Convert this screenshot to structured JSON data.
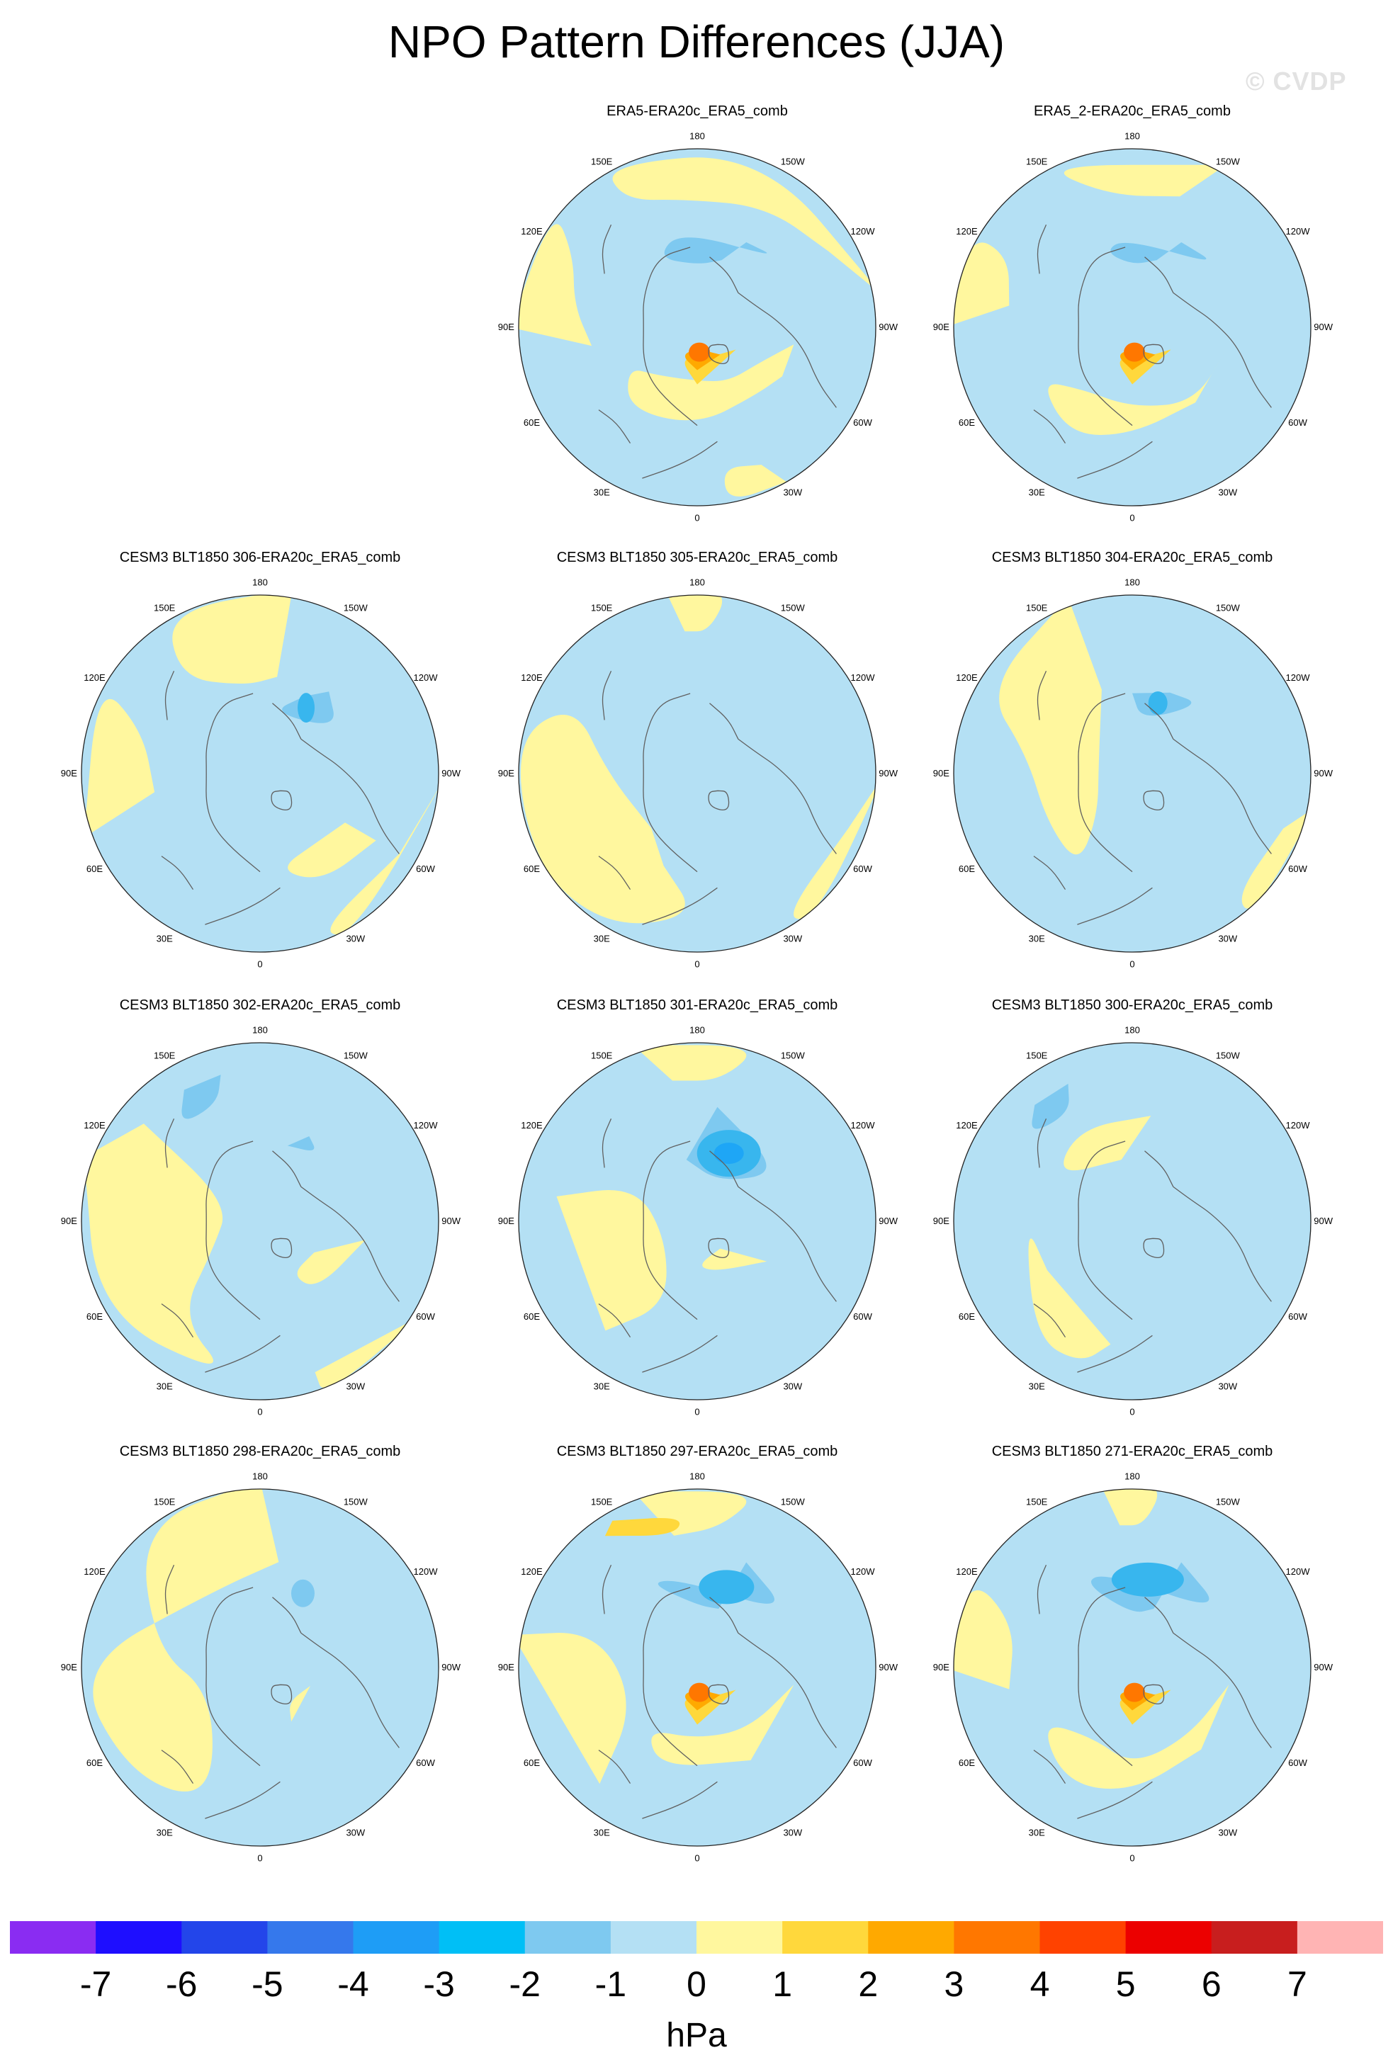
{
  "title": "NPO Pattern Differences (JJA)",
  "watermark": "© CVDP",
  "colors": {
    "neg": "#b4e0f4",
    "pos": "#fff79e",
    "pos1": "#ffd83c",
    "pos2": "#ffa900",
    "pos3": "#ff7700",
    "neg2": "#7ec9f0",
    "neg3": "#38b6ee",
    "neg4": "#1ea6f6",
    "coast": "#606060",
    "rim": "#222222"
  },
  "chart_data": {
    "type": "heatmap",
    "projection": "polar stereographic, Northern Hemisphere",
    "variable": "sea level pressure pattern difference",
    "units": "hPa",
    "longitude_labels": [
      "180",
      "150E",
      "120E",
      "90E",
      "60E",
      "30E",
      "0",
      "30W",
      "60W",
      "90W",
      "120W",
      "150W"
    ],
    "colorbar": {
      "ticks": [
        "-7",
        "-6",
        "-5",
        "-4",
        "-3",
        "-2",
        "-1",
        "0",
        "1",
        "2",
        "3",
        "4",
        "5",
        "6",
        "7"
      ],
      "unit": "hPa",
      "colors": [
        "#8a2cf2",
        "#1e0eff",
        "#2345ea",
        "#3578ec",
        "#1e9df6",
        "#00bff6",
        "#7ec9f0",
        "#b4e0f4",
        "#fff79e",
        "#ffd83c",
        "#ffa900",
        "#ff7700",
        "#ff4200",
        "#ec0000",
        "#c81e1e",
        "#ffb4b4"
      ]
    },
    "panels": [
      {
        "title": "ERA5-ERA20c_ERA5_comb",
        "pattern": "era5",
        "min": -2,
        "max": 3
      },
      {
        "title": "ERA5_2-ERA20c_ERA5_comb",
        "pattern": "era5b",
        "min": -2,
        "max": 3
      },
      {
        "title": "CESM3 BLT1850 306-ERA20c_ERA5_comb",
        "pattern": "m306",
        "min": -3,
        "max": 1
      },
      {
        "title": "CESM3 BLT1850 305-ERA20c_ERA5_comb",
        "pattern": "m305",
        "min": -1,
        "max": 1
      },
      {
        "title": "CESM3 BLT1850 304-ERA20c_ERA5_comb",
        "pattern": "m304",
        "min": -3,
        "max": 1
      },
      {
        "title": "CESM3 BLT1850 302-ERA20c_ERA5_comb",
        "pattern": "m302",
        "min": -2,
        "max": 1
      },
      {
        "title": "CESM3 BLT1850 301-ERA20c_ERA5_comb",
        "pattern": "m301",
        "min": -4,
        "max": 1
      },
      {
        "title": "CESM3 BLT1850 300-ERA20c_ERA5_comb",
        "pattern": "m300",
        "min": -2,
        "max": 1
      },
      {
        "title": "CESM3 BLT1850 298-ERA20c_ERA5_comb",
        "pattern": "m298",
        "min": -2,
        "max": 1
      },
      {
        "title": "CESM3 BLT1850 297-ERA20c_ERA5_comb",
        "pattern": "m297",
        "min": -3,
        "max": 3
      },
      {
        "title": "CESM3 BLT1850 271-ERA20c_ERA5_comb",
        "pattern": "m271",
        "min": -3,
        "max": 3
      }
    ]
  }
}
